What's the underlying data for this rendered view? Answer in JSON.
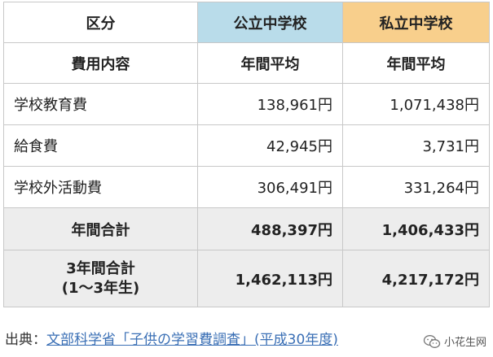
{
  "table": {
    "header": {
      "label": "区分",
      "public": "公立中学校",
      "private": "私立中学校"
    },
    "subheader": {
      "label": "費用内容",
      "public": "年間平均",
      "private": "年間平均"
    },
    "rows": [
      {
        "label": "学校教育費",
        "public": "138,961円",
        "private": "1,071,438円"
      },
      {
        "label": "給食費",
        "public": "42,945円",
        "private": "3,731円"
      },
      {
        "label": "学校外活動費",
        "public": "306,491円",
        "private": "331,264円"
      }
    ],
    "annual_total": {
      "label": "年間合計",
      "public": "488,397円",
      "private": "1,406,433円"
    },
    "three_year_total": {
      "label_line1": "3年間合計",
      "label_line2": "(1～3年生)",
      "public": "1,462,113円",
      "private": "4,217,172円"
    }
  },
  "source": {
    "prefix": "出典：",
    "text": "文部科学省「子供の学習費調査」(平成30年度)"
  },
  "watermark": {
    "icon": "wechat-icon",
    "text": "小花生网"
  },
  "colors": {
    "public_header": "#b9dcea",
    "private_header": "#f8cf8c",
    "total_rows": "#ededed",
    "link": "#3a6fb5"
  }
}
